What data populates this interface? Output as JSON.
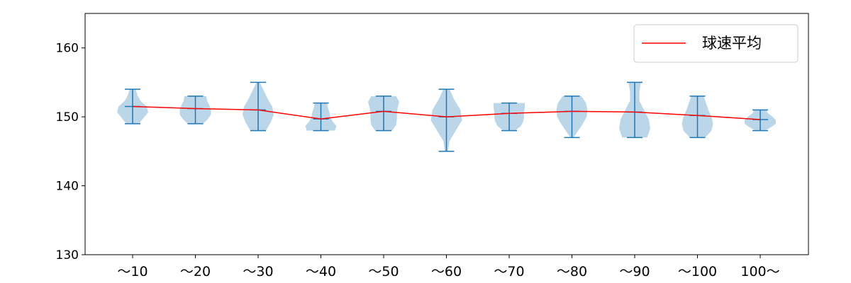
{
  "chart_data": {
    "type": "violin",
    "title": "",
    "xlabel": "",
    "ylabel": "",
    "ylim": [
      130,
      165
    ],
    "yticks": [
      130,
      140,
      150,
      160
    ],
    "categories": [
      "～10",
      "～20",
      "～30",
      "～40",
      "～50",
      "～60",
      "～70",
      "～80",
      "～90",
      "～100",
      "100～"
    ],
    "max": [
      154,
      153,
      155,
      152,
      153,
      154,
      152,
      153,
      155,
      153,
      151
    ],
    "min": [
      149,
      149,
      148,
      148,
      148,
      145,
      148,
      147,
      147,
      147,
      148
    ],
    "mean": [
      151.5,
      151.2,
      151.0,
      149.7,
      150.8,
      150.0,
      150.5,
      150.8,
      150.7,
      150.2,
      149.6
    ],
    "density_profile_bottom_to_top": [
      [
        0.4,
        0.7,
        1,
        0.9,
        0.5,
        0.3,
        0.2
      ],
      [
        0.5,
        0.8,
        1,
        1,
        0.9,
        0.75,
        0.7
      ],
      [
        0.5,
        0.8,
        1,
        0.9,
        0.6,
        0.35,
        0.1
      ],
      [
        0.9,
        1,
        0.75,
        0.6,
        0.55,
        0.45,
        0.4
      ],
      [
        0.55,
        0.8,
        0.85,
        0.85,
        0.9,
        1,
        0.8
      ],
      [
        0.1,
        0.2,
        0.6,
        1,
        0.9,
        0.5,
        0.2
      ],
      [
        0.4,
        0.75,
        0.9,
        0.95,
        0.95,
        1,
        1
      ],
      [
        0.1,
        0.4,
        0.7,
        0.95,
        1,
        0.9,
        0.6
      ],
      [
        0.8,
        1,
        0.9,
        0.6,
        0.3,
        0.3,
        0.4
      ],
      [
        0.5,
        0.9,
        1,
        0.9,
        0.7,
        0.55,
        0.4
      ],
      [
        0.3,
        0.7,
        1,
        1,
        0.8,
        0.5,
        0.4
      ]
    ],
    "mean_line": {
      "name": "球速平均",
      "color": "#ff0000"
    },
    "violin_color": "#1f77b4",
    "legend_position": "upper-right",
    "grid": false
  }
}
